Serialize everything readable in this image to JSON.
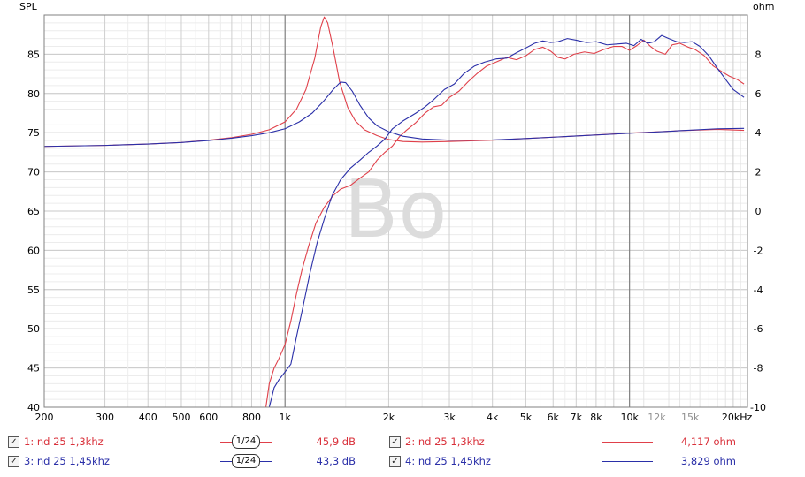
{
  "chart_data": {
    "type": "line",
    "xscale": "log",
    "xlim": [
      200,
      22000
    ],
    "ylim": [
      40,
      90
    ],
    "y2lim": [
      -10,
      10
    ],
    "ylabel": "SPL",
    "y2label": "ohm",
    "x_ticks": [
      {
        "v": 200,
        "label": "200",
        "color": "#000000"
      },
      {
        "v": 300,
        "label": "300",
        "color": "#000000"
      },
      {
        "v": 400,
        "label": "400",
        "color": "#000000"
      },
      {
        "v": 500,
        "label": "500",
        "color": "#000000"
      },
      {
        "v": 600,
        "label": "600",
        "color": "#000000"
      },
      {
        "v": 800,
        "label": "800",
        "color": "#000000"
      },
      {
        "v": 1000,
        "label": "1k",
        "color": "#000000"
      },
      {
        "v": 2000,
        "label": "2k",
        "color": "#000000"
      },
      {
        "v": 3000,
        "label": "3k",
        "color": "#000000"
      },
      {
        "v": 4000,
        "label": "4k",
        "color": "#000000"
      },
      {
        "v": 5000,
        "label": "5k",
        "color": "#000000"
      },
      {
        "v": 6000,
        "label": "6k",
        "color": "#000000"
      },
      {
        "v": 7000,
        "label": "7k",
        "color": "#000000"
      },
      {
        "v": 8000,
        "label": "8k",
        "color": "#000000"
      },
      {
        "v": 10000,
        "label": "10k",
        "color": "#000000"
      },
      {
        "v": 12000,
        "label": "12k",
        "color": "#909090"
      },
      {
        "v": 15000,
        "label": "15k",
        "color": "#909090"
      },
      {
        "v": 20000,
        "label": "20kHz",
        "color": "#000000"
      }
    ],
    "y_ticks": [
      "40",
      "45",
      "50",
      "55",
      "60",
      "65",
      "70",
      "75",
      "80",
      "85"
    ],
    "y2_ticks": [
      "-10",
      "-8",
      "-6",
      "-4",
      "-2",
      "0",
      "2",
      "4",
      "6",
      "8"
    ],
    "watermark": "Bo",
    "series": [
      {
        "name": "1: nd 25 1,3khz",
        "axis": "left",
        "color": "#e0404a",
        "points": [
          [
            880,
            40
          ],
          [
            900,
            43
          ],
          [
            930,
            45
          ],
          [
            960,
            46.2
          ],
          [
            1000,
            48
          ],
          [
            1040,
            51
          ],
          [
            1080,
            54.5
          ],
          [
            1120,
            57.5
          ],
          [
            1170,
            60.5
          ],
          [
            1230,
            63.5
          ],
          [
            1300,
            65.5
          ],
          [
            1380,
            67
          ],
          [
            1450,
            67.8
          ],
          [
            1550,
            68.3
          ],
          [
            1650,
            69.2
          ],
          [
            1750,
            70
          ],
          [
            1850,
            71.5
          ],
          [
            1950,
            72.5
          ],
          [
            2050,
            73.3
          ],
          [
            2150,
            74.5
          ],
          [
            2250,
            75.3
          ],
          [
            2400,
            76.3
          ],
          [
            2550,
            77.5
          ],
          [
            2700,
            78.3
          ],
          [
            2850,
            78.5
          ],
          [
            3000,
            79.5
          ],
          [
            3200,
            80.3
          ],
          [
            3400,
            81.5
          ],
          [
            3600,
            82.5
          ],
          [
            3850,
            83.5
          ],
          [
            4100,
            84
          ],
          [
            4400,
            84.6
          ],
          [
            4700,
            84.3
          ],
          [
            5000,
            84.8
          ],
          [
            5300,
            85.6
          ],
          [
            5600,
            85.9
          ],
          [
            5900,
            85.4
          ],
          [
            6200,
            84.6
          ],
          [
            6500,
            84.4
          ],
          [
            6900,
            85
          ],
          [
            7400,
            85.3
          ],
          [
            7900,
            85.1
          ],
          [
            8400,
            85.6
          ],
          [
            9000,
            86
          ],
          [
            9500,
            86
          ],
          [
            10000,
            85.5
          ],
          [
            10500,
            86.1
          ],
          [
            11000,
            86.8
          ],
          [
            11500,
            86
          ],
          [
            12000,
            85.4
          ],
          [
            12700,
            85
          ],
          [
            13300,
            86.2
          ],
          [
            14000,
            86.4
          ],
          [
            14800,
            85.9
          ],
          [
            15500,
            85.6
          ],
          [
            16500,
            84.8
          ],
          [
            17500,
            83.5
          ],
          [
            18500,
            82.8
          ],
          [
            19500,
            82.2
          ],
          [
            20500,
            81.8
          ],
          [
            21500,
            81.2
          ]
        ]
      },
      {
        "name": "2: nd 25 1,3khz",
        "axis": "right",
        "color": "#e0404a",
        "points": [
          [
            200,
            3.3
          ],
          [
            300,
            3.35
          ],
          [
            400,
            3.42
          ],
          [
            500,
            3.5
          ],
          [
            600,
            3.62
          ],
          [
            700,
            3.75
          ],
          [
            800,
            3.92
          ],
          [
            900,
            4.15
          ],
          [
            1000,
            4.55
          ],
          [
            1080,
            5.2
          ],
          [
            1150,
            6.2
          ],
          [
            1220,
            7.8
          ],
          [
            1270,
            9.4
          ],
          [
            1300,
            9.9
          ],
          [
            1330,
            9.6
          ],
          [
            1380,
            8.3
          ],
          [
            1440,
            6.6
          ],
          [
            1520,
            5.3
          ],
          [
            1600,
            4.6
          ],
          [
            1700,
            4.15
          ],
          [
            1850,
            3.85
          ],
          [
            2000,
            3.65
          ],
          [
            2200,
            3.55
          ],
          [
            2500,
            3.52
          ],
          [
            3000,
            3.55
          ],
          [
            4000,
            3.62
          ],
          [
            5000,
            3.7
          ],
          [
            7000,
            3.83
          ],
          [
            10000,
            3.98
          ],
          [
            14000,
            4.1
          ],
          [
            18000,
            4.17
          ],
          [
            21500,
            4.12
          ]
        ]
      },
      {
        "name": "3: nd 25 1,45khz",
        "axis": "left",
        "color": "#2a2fa8",
        "points": [
          [
            900,
            40
          ],
          [
            930,
            42.5
          ],
          [
            960,
            43.5
          ],
          [
            1000,
            44.5
          ],
          [
            1040,
            45.5
          ],
          [
            1080,
            49
          ],
          [
            1130,
            53
          ],
          [
            1180,
            57
          ],
          [
            1240,
            61
          ],
          [
            1300,
            64
          ],
          [
            1370,
            67
          ],
          [
            1450,
            69
          ],
          [
            1550,
            70.5
          ],
          [
            1650,
            71.5
          ],
          [
            1750,
            72.5
          ],
          [
            1850,
            73.3
          ],
          [
            1950,
            74.2
          ],
          [
            2050,
            75.5
          ],
          [
            2200,
            76.5
          ],
          [
            2400,
            77.5
          ],
          [
            2550,
            78.3
          ],
          [
            2700,
            79.2
          ],
          [
            2900,
            80.5
          ],
          [
            3100,
            81.2
          ],
          [
            3300,
            82.5
          ],
          [
            3550,
            83.5
          ],
          [
            3800,
            84
          ],
          [
            4100,
            84.4
          ],
          [
            4400,
            84.5
          ],
          [
            4700,
            85.2
          ],
          [
            5000,
            85.8
          ],
          [
            5300,
            86.4
          ],
          [
            5600,
            86.7
          ],
          [
            5900,
            86.5
          ],
          [
            6200,
            86.6
          ],
          [
            6600,
            87
          ],
          [
            7000,
            86.8
          ],
          [
            7500,
            86.5
          ],
          [
            8000,
            86.6
          ],
          [
            8600,
            86.2
          ],
          [
            9200,
            86.3
          ],
          [
            9800,
            86.4
          ],
          [
            10300,
            86.1
          ],
          [
            10800,
            86.9
          ],
          [
            11300,
            86.4
          ],
          [
            11800,
            86.6
          ],
          [
            12400,
            87.4
          ],
          [
            13000,
            87
          ],
          [
            13700,
            86.6
          ],
          [
            14400,
            86.5
          ],
          [
            15200,
            86.6
          ],
          [
            16000,
            86
          ],
          [
            17000,
            84.8
          ],
          [
            18000,
            83.2
          ],
          [
            19000,
            81.8
          ],
          [
            20000,
            80.5
          ],
          [
            21500,
            79.5
          ]
        ]
      },
      {
        "name": "4: nd 25 1,45khz",
        "axis": "right",
        "color": "#2a2fa8",
        "points": [
          [
            200,
            3.3
          ],
          [
            300,
            3.35
          ],
          [
            400,
            3.42
          ],
          [
            500,
            3.5
          ],
          [
            600,
            3.6
          ],
          [
            700,
            3.72
          ],
          [
            800,
            3.85
          ],
          [
            900,
            4
          ],
          [
            1000,
            4.2
          ],
          [
            1100,
            4.55
          ],
          [
            1200,
            5
          ],
          [
            1300,
            5.65
          ],
          [
            1380,
            6.2
          ],
          [
            1450,
            6.58
          ],
          [
            1500,
            6.55
          ],
          [
            1570,
            6.1
          ],
          [
            1650,
            5.4
          ],
          [
            1750,
            4.75
          ],
          [
            1850,
            4.35
          ],
          [
            2000,
            4.05
          ],
          [
            2200,
            3.82
          ],
          [
            2500,
            3.68
          ],
          [
            3000,
            3.62
          ],
          [
            4000,
            3.63
          ],
          [
            5000,
            3.7
          ],
          [
            7000,
            3.83
          ],
          [
            10000,
            3.97
          ],
          [
            14000,
            4.1
          ],
          [
            18000,
            4.2
          ],
          [
            21500,
            4.22
          ]
        ]
      }
    ]
  },
  "legend": {
    "row1": {
      "left_check": "✓",
      "left_label": "1: nd 25 1,3khz",
      "smoothing": "1/24",
      "left_value": "45,9 dB",
      "right_check": "✓",
      "right_label": "2: nd 25 1,3khz",
      "right_value": "4,117 ohm",
      "color": "#e0404a"
    },
    "row2": {
      "left_check": "✓",
      "left_label": "3: nd 25 1,45khz",
      "smoothing": "1/24",
      "left_value": "43,3 dB",
      "right_check": "✓",
      "right_label": "4: nd 25 1,45khz",
      "right_value": "3,829 ohm",
      "color": "#2a2fa8"
    }
  }
}
